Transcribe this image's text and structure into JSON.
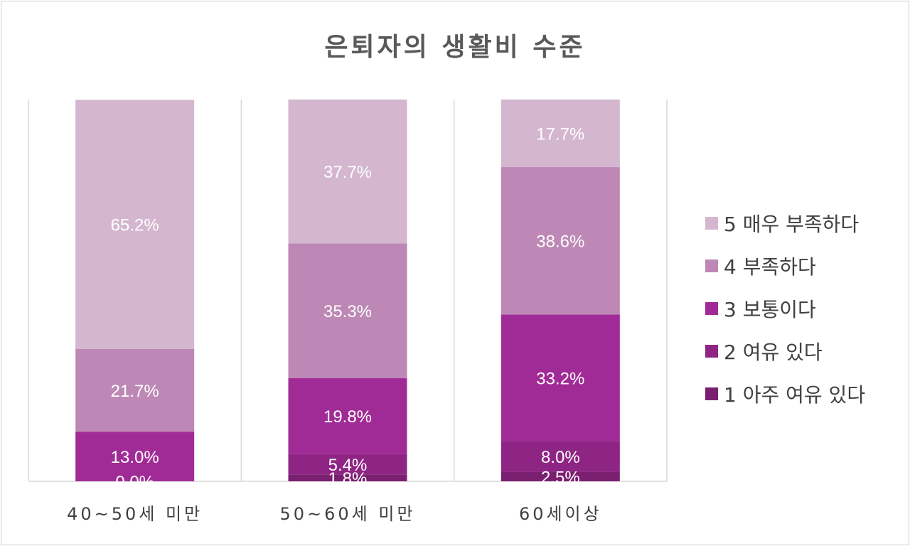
{
  "chart_data": {
    "type": "bar",
    "stacked": true,
    "normalized_100": true,
    "title": "은퇴자의 생활비 수준",
    "categories": [
      "40~50세 미만",
      "50~60세 미만",
      "60세이상"
    ],
    "series": [
      {
        "name": "1 아주 여유 있다",
        "color": "#7b1f70",
        "values": [
          0.0,
          1.8,
          2.5
        ],
        "labels": [
          "",
          "1.8%",
          "2.5%"
        ]
      },
      {
        "name": "2 여유 있다",
        "color": "#8e2584",
        "values": [
          0.0,
          5.4,
          8.0
        ],
        "labels": [
          "0.0%",
          "5.4%",
          "8.0%"
        ]
      },
      {
        "name": "3 보통이다",
        "color": "#a12b96",
        "values": [
          13.0,
          19.8,
          33.2
        ],
        "labels": [
          "13.0%",
          "19.8%",
          "33.2%"
        ]
      },
      {
        "name": "4 부족하다",
        "color": "#bd88b5",
        "values": [
          21.7,
          35.3,
          38.6
        ],
        "labels": [
          "21.7%",
          "35.3%",
          "38.6%"
        ]
      },
      {
        "name": "5 매우 부족하다",
        "color": "#d4b6cf",
        "values": [
          65.2,
          37.7,
          17.7
        ],
        "labels": [
          "65.2%",
          "37.7%",
          "17.7%"
        ]
      }
    ],
    "gridlines": "vertical",
    "legend_position": "right",
    "legend_order": [
      "5 매우 부족하다",
      "4 부족하다",
      "3 보통이다",
      "2 여유 있다",
      "1 아주 여유 있다"
    ]
  }
}
